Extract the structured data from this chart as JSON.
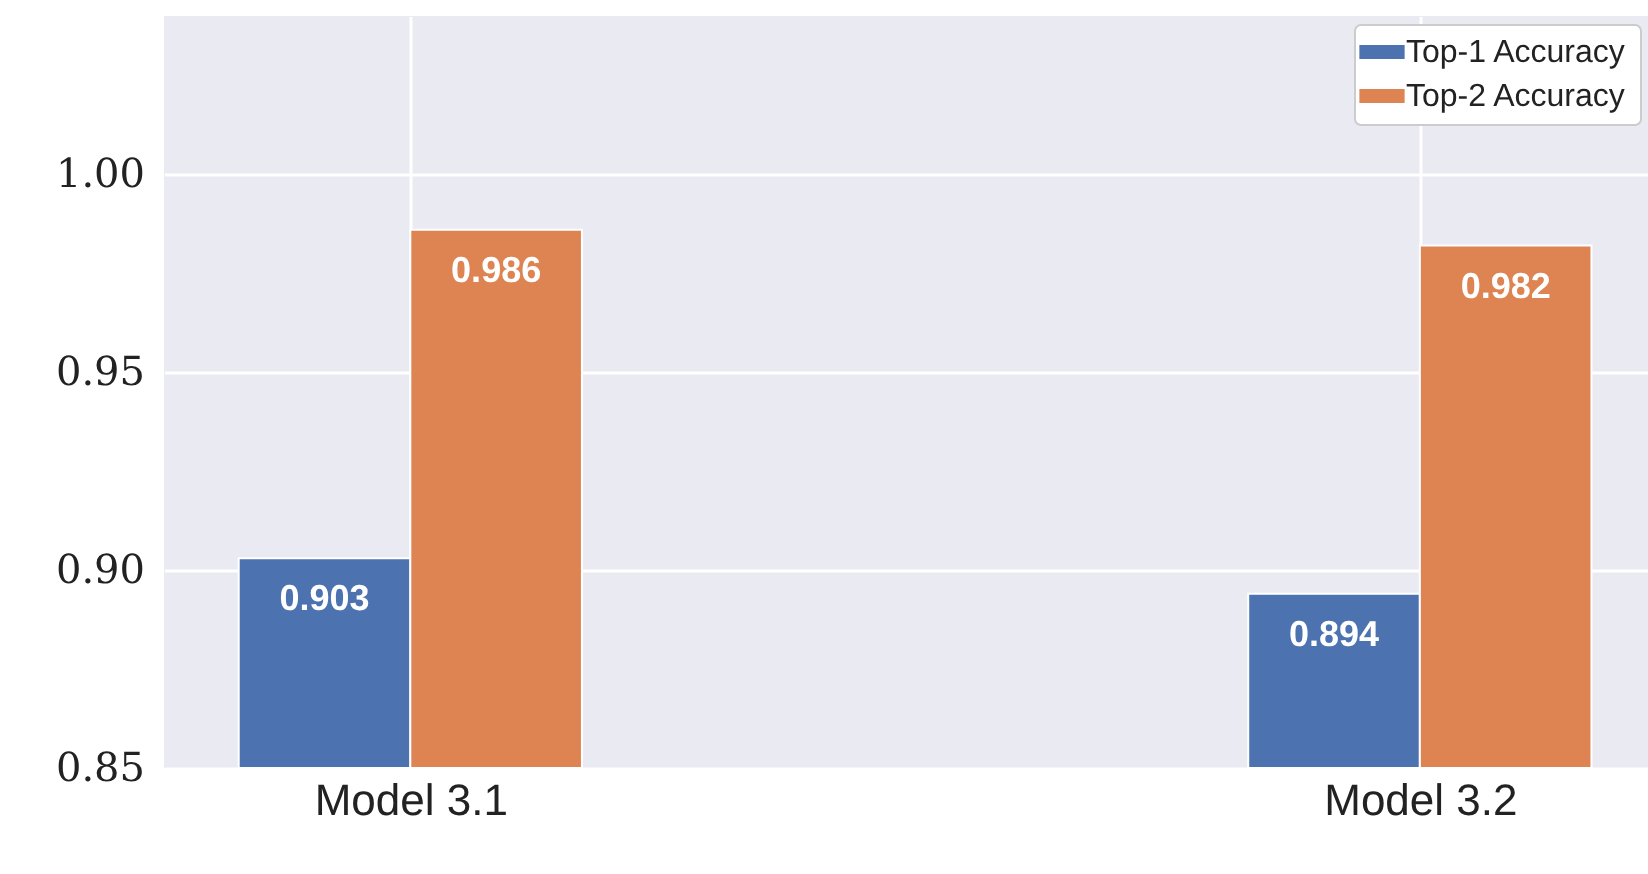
{
  "chart_data": {
    "type": "bar",
    "categories": [
      "Model 3.1",
      "Model 3.2"
    ],
    "series": [
      {
        "name": "Top-1 Accuracy",
        "color": "#4c72b0",
        "values": [
          0.903,
          0.894
        ]
      },
      {
        "name": "Top-2 Accuracy",
        "color": "#dd8452",
        "values": [
          0.986,
          0.982
        ]
      }
    ],
    "ylim": [
      0.85,
      1.04
    ],
    "yticks": [
      {
        "value": 0.85,
        "label": "0.85"
      },
      {
        "value": 0.9,
        "label": "0.90"
      },
      {
        "value": 0.95,
        "label": "0.95"
      },
      {
        "value": 1.0,
        "label": "1.00"
      }
    ],
    "grid": true,
    "legend": "top right",
    "data_labels": true
  }
}
